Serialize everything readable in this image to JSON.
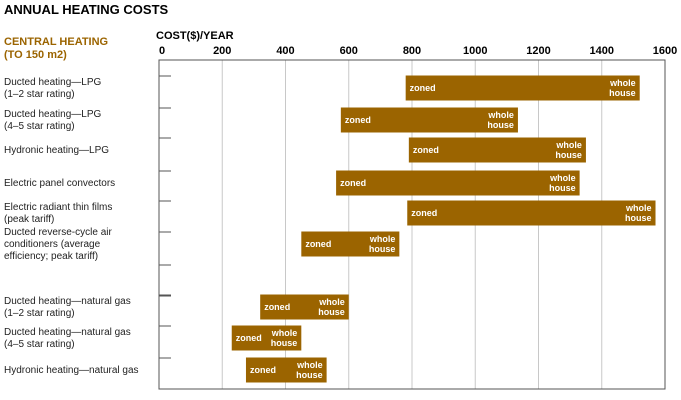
{
  "chart_data": {
    "type": "bar",
    "title": "ANNUAL HEATING COSTS",
    "section_label": [
      "CENTRAL HEATING",
      "(TO 150 m2)"
    ],
    "xlabel": "COST($)/YEAR",
    "ylabel": "",
    "xlim": [
      0,
      1600
    ],
    "xticks": [
      "0",
      "200",
      "400",
      "600",
      "800",
      "1000",
      "1200",
      "1400",
      "1600"
    ],
    "grid": true,
    "bar_color": "#9b6400",
    "bar_start_label": "zoned",
    "bar_end_label": [
      "whole",
      "house"
    ],
    "categories": [
      {
        "label": [
          "Ducted heating—LPG",
          "(1–2 star rating)"
        ],
        "zoned": 780,
        "whole_house": 1520
      },
      {
        "label": [
          "Ducted heating—LPG",
          "(4–5 star rating)"
        ],
        "zoned": 575,
        "whole_house": 1135
      },
      {
        "label": [
          "Hydronic heating—LPG"
        ],
        "zoned": 790,
        "whole_house": 1350
      },
      {
        "label": [
          "Electric panel convectors"
        ],
        "zoned": 560,
        "whole_house": 1330
      },
      {
        "label": [
          "Electric radiant thin films",
          "(peak tariff)"
        ],
        "zoned": 785,
        "whole_house": 1570
      },
      {
        "label": [
          "Ducted reverse-cycle air",
          "conditioners (average",
          "efficiency; peak tariff)"
        ],
        "zoned": 450,
        "whole_house": 760
      },
      {
        "label": [
          "Ducted heating—natural gas",
          "(1–2 star rating)"
        ],
        "zoned": 320,
        "whole_house": 600
      },
      {
        "label": [
          "Ducted heating—natural gas",
          "(4–5 star rating)"
        ],
        "zoned": 230,
        "whole_house": 450
      },
      {
        "label": [
          "Hydronic heating—natural gas"
        ],
        "zoned": 275,
        "whole_house": 530
      }
    ]
  }
}
